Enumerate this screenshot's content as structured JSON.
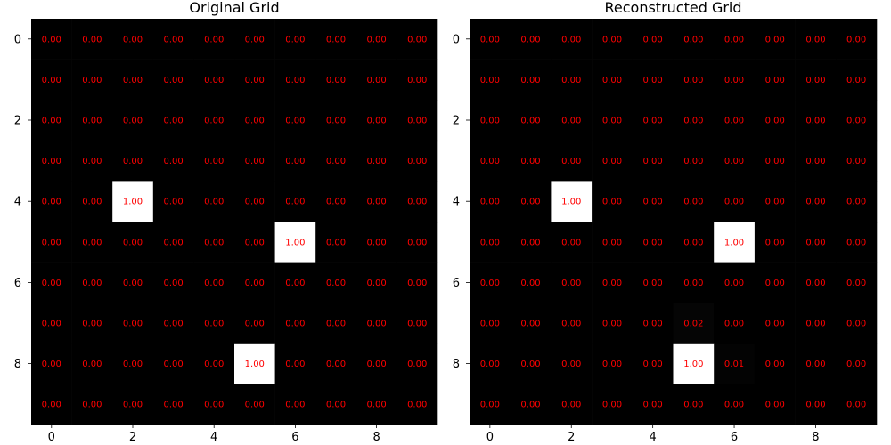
{
  "chart_data": [
    {
      "type": "heatmap",
      "title": "Original Grid",
      "xlabel": "",
      "ylabel": "",
      "rows": 10,
      "cols": 10,
      "x_ticks": [
        0,
        2,
        4,
        6,
        8
      ],
      "y_ticks": [
        0,
        2,
        4,
        6,
        8
      ],
      "value_format": "0.00",
      "colormap": "gray",
      "vmin": 0,
      "vmax": 1,
      "annotation_color": "#ff0000",
      "values": [
        [
          0,
          0,
          0,
          0,
          0,
          0,
          0,
          0,
          0,
          0
        ],
        [
          0,
          0,
          0,
          0,
          0,
          0,
          0,
          0,
          0,
          0
        ],
        [
          0,
          0,
          0,
          0,
          0,
          0,
          0,
          0,
          0,
          0
        ],
        [
          0,
          0,
          0,
          0,
          0,
          0,
          0,
          0,
          0,
          0
        ],
        [
          0,
          0,
          1,
          0,
          0,
          0,
          0,
          0,
          0,
          0
        ],
        [
          0,
          0,
          0,
          0,
          0,
          0,
          1,
          0,
          0,
          0
        ],
        [
          0,
          0,
          0,
          0,
          0,
          0,
          0,
          0,
          0,
          0
        ],
        [
          0,
          0,
          0,
          0,
          0,
          0,
          0,
          0,
          0,
          0
        ],
        [
          0,
          0,
          0,
          0,
          0,
          1,
          0,
          0,
          0,
          0
        ],
        [
          0,
          0,
          0,
          0,
          0,
          0,
          0,
          0,
          0,
          0
        ]
      ]
    },
    {
      "type": "heatmap",
      "title": "Reconstructed Grid",
      "xlabel": "",
      "ylabel": "",
      "rows": 10,
      "cols": 10,
      "x_ticks": [
        0,
        2,
        4,
        6,
        8
      ],
      "y_ticks": [
        0,
        2,
        4,
        6,
        8
      ],
      "value_format": "0.00",
      "colormap": "gray",
      "vmin": 0,
      "vmax": 1,
      "annotation_color": "#ff0000",
      "values": [
        [
          0,
          0,
          0,
          0,
          0,
          0,
          0,
          0,
          0,
          0
        ],
        [
          0,
          0,
          0,
          0,
          0,
          0,
          0,
          0,
          0,
          0
        ],
        [
          0,
          0,
          0,
          0,
          0,
          0,
          0,
          0,
          0,
          0
        ],
        [
          0,
          0,
          0,
          0,
          0,
          0,
          0,
          0,
          0,
          0
        ],
        [
          0,
          0,
          1,
          0,
          0,
          0,
          0,
          0,
          0,
          0
        ],
        [
          0,
          0,
          0,
          0,
          0,
          0,
          1,
          0,
          0,
          0
        ],
        [
          0,
          0,
          0,
          0,
          0,
          0,
          0,
          0,
          0,
          0
        ],
        [
          0,
          0,
          0,
          0,
          0,
          0.02,
          0,
          0,
          0,
          0
        ],
        [
          0,
          0,
          0,
          0,
          0,
          1,
          0.01,
          0,
          0,
          0
        ],
        [
          0,
          0,
          0,
          0,
          0,
          0,
          0,
          0,
          0,
          0
        ]
      ]
    }
  ]
}
